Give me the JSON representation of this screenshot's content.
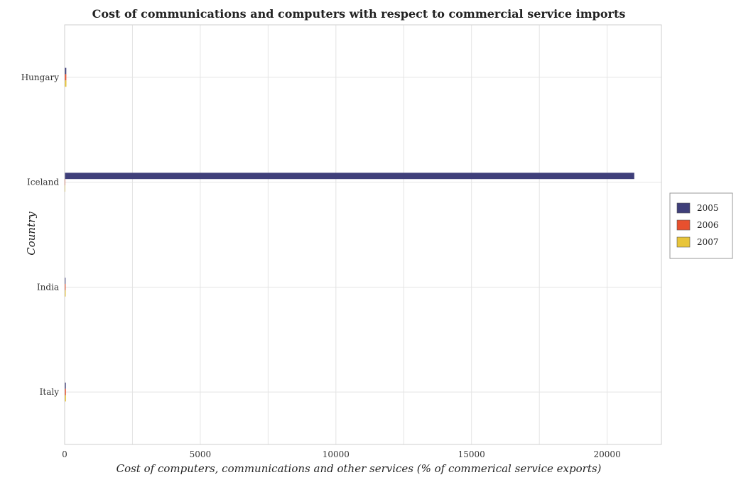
{
  "chart_data": {
    "type": "bar",
    "orientation": "horizontal",
    "title": "Cost of communications and computers with respect to commercial service imports",
    "xlabel": "Cost of computers, communications and other services (% of commerical service exports)",
    "ylabel": "Country",
    "categories": [
      "Hungary",
      "Iceland",
      "India",
      "Italy"
    ],
    "series": [
      {
        "name": "2005",
        "color": "#3f3f7a",
        "values": [
          60,
          21000,
          35,
          45
        ]
      },
      {
        "name": "2006",
        "color": "#e8502e",
        "values": [
          62,
          3,
          38,
          48
        ]
      },
      {
        "name": "2007",
        "color": "#e8c53a",
        "values": [
          65,
          3,
          40,
          50
        ]
      }
    ],
    "xlim": [
      0,
      22000
    ],
    "xticks": [
      0,
      5000,
      10000,
      15000,
      20000
    ],
    "xtick_labels": [
      "0",
      "5000",
      "10000",
      "15000",
      "20000"
    ],
    "grid": true,
    "legend_position": "right"
  }
}
